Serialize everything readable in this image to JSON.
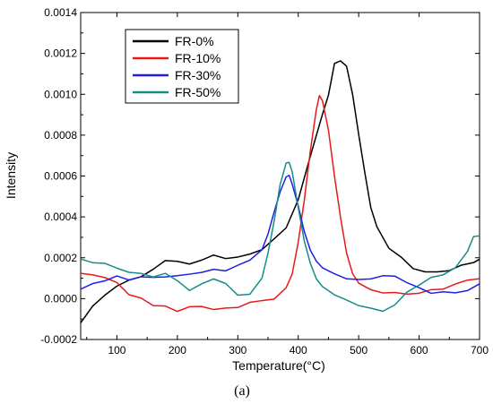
{
  "chart_data": {
    "type": "line",
    "xlabel": "Temperature(°C)",
    "ylabel": "Intensity",
    "caption": "(a)",
    "xlim": [
      40,
      700
    ],
    "ylim": [
      -0.0002,
      0.0014
    ],
    "x_ticks": [
      100,
      200,
      300,
      400,
      500,
      600,
      700
    ],
    "x_tick_labels": [
      "100",
      "200",
      "300",
      "400",
      "500",
      "600",
      "700"
    ],
    "y_ticks": [
      -0.0002,
      0.0,
      0.0002,
      0.0004,
      0.0006,
      0.0008,
      0.001,
      0.0012,
      0.0014
    ],
    "y_tick_labels": [
      "-0.0002",
      "0.0000",
      "0.0002",
      "0.0004",
      "0.0006",
      "0.0008",
      "0.0010",
      "0.0012",
      "0.0014"
    ],
    "grid": false,
    "legend_position": "top-left",
    "series": [
      {
        "name": "FR-0%",
        "color": "#000000",
        "points": [
          [
            40,
            -0.000115
          ],
          [
            60,
            -4e-05
          ],
          [
            80,
            2e-05
          ],
          [
            100,
            6e-05
          ],
          [
            120,
            9e-05
          ],
          [
            140,
            0.00011
          ],
          [
            160,
            0.00014
          ],
          [
            180,
            0.00019
          ],
          [
            200,
            0.00018
          ],
          [
            220,
            0.00017
          ],
          [
            240,
            0.00019
          ],
          [
            260,
            0.00021
          ],
          [
            280,
            0.0002
          ],
          [
            300,
            0.0002
          ],
          [
            320,
            0.00022
          ],
          [
            340,
            0.00024
          ],
          [
            360,
            0.00029
          ],
          [
            380,
            0.00035
          ],
          [
            400,
            0.00048
          ],
          [
            420,
            0.0007
          ],
          [
            440,
            0.0009
          ],
          [
            450,
            0.001
          ],
          [
            460,
            0.00115
          ],
          [
            470,
            0.00116
          ],
          [
            480,
            0.00114
          ],
          [
            490,
            0.001
          ],
          [
            500,
            0.0008
          ],
          [
            510,
            0.00062
          ],
          [
            520,
            0.00045
          ],
          [
            530,
            0.00035
          ],
          [
            550,
            0.00025
          ],
          [
            570,
            0.0002
          ],
          [
            590,
            0.00015
          ],
          [
            610,
            0.00013
          ],
          [
            630,
            0.00013
          ],
          [
            650,
            0.00014
          ],
          [
            670,
            0.00016
          ],
          [
            690,
            0.00018
          ],
          [
            700,
            0.00019
          ]
        ]
      },
      {
        "name": "FR-10%",
        "color": "#e8191b",
        "points": [
          [
            40,
            0.00012
          ],
          [
            60,
            0.00012
          ],
          [
            80,
            0.0001
          ],
          [
            100,
            8e-05
          ],
          [
            120,
            2e-05
          ],
          [
            140,
            0.0
          ],
          [
            160,
            -3e-05
          ],
          [
            180,
            -4e-05
          ],
          [
            200,
            -6e-05
          ],
          [
            220,
            -4e-05
          ],
          [
            240,
            -4e-05
          ],
          [
            260,
            -5e-05
          ],
          [
            280,
            -5e-05
          ],
          [
            300,
            -4e-05
          ],
          [
            320,
            -2e-05
          ],
          [
            340,
            -1e-05
          ],
          [
            360,
            0.0
          ],
          [
            380,
            5e-05
          ],
          [
            390,
            0.00012
          ],
          [
            400,
            0.00028
          ],
          [
            410,
            0.00048
          ],
          [
            420,
            0.00072
          ],
          [
            430,
            0.00093
          ],
          [
            435,
            0.00099
          ],
          [
            440,
            0.00097
          ],
          [
            450,
            0.00082
          ],
          [
            460,
            0.0006
          ],
          [
            470,
            0.0004
          ],
          [
            480,
            0.00022
          ],
          [
            490,
            0.00012
          ],
          [
            500,
            8e-05
          ],
          [
            520,
            4e-05
          ],
          [
            540,
            3e-05
          ],
          [
            560,
            3e-05
          ],
          [
            580,
            2e-05
          ],
          [
            600,
            3e-05
          ],
          [
            620,
            4e-05
          ],
          [
            640,
            5e-05
          ],
          [
            660,
            7e-05
          ],
          [
            680,
            9e-05
          ],
          [
            700,
            0.0001
          ]
        ]
      },
      {
        "name": "FR-30%",
        "color": "#1e1ee6",
        "points": [
          [
            40,
            5e-05
          ],
          [
            60,
            7e-05
          ],
          [
            80,
            9e-05
          ],
          [
            100,
            0.00011
          ],
          [
            120,
            9e-05
          ],
          [
            140,
            0.00011
          ],
          [
            160,
            0.0001
          ],
          [
            180,
            0.00011
          ],
          [
            200,
            0.00011
          ],
          [
            220,
            0.00012
          ],
          [
            240,
            0.00013
          ],
          [
            260,
            0.00014
          ],
          [
            280,
            0.00014
          ],
          [
            300,
            0.00016
          ],
          [
            320,
            0.00019
          ],
          [
            340,
            0.00024
          ],
          [
            350,
            0.00032
          ],
          [
            360,
            0.00042
          ],
          [
            370,
            0.00052
          ],
          [
            380,
            0.0006
          ],
          [
            385,
            0.0006
          ],
          [
            390,
            0.00056
          ],
          [
            400,
            0.00045
          ],
          [
            410,
            0.00033
          ],
          [
            420,
            0.00024
          ],
          [
            430,
            0.00018
          ],
          [
            440,
            0.00015
          ],
          [
            460,
            0.00012
          ],
          [
            480,
            0.0001
          ],
          [
            500,
            9e-05
          ],
          [
            520,
            0.0001
          ],
          [
            540,
            0.00011
          ],
          [
            560,
            0.00011
          ],
          [
            580,
            8e-05
          ],
          [
            600,
            5e-05
          ],
          [
            620,
            3e-05
          ],
          [
            640,
            3e-05
          ],
          [
            660,
            3e-05
          ],
          [
            680,
            4e-05
          ],
          [
            700,
            7e-05
          ]
        ]
      },
      {
        "name": "FR-50%",
        "color": "#148c8a",
        "points": [
          [
            40,
            0.00019
          ],
          [
            60,
            0.00018
          ],
          [
            80,
            0.00017
          ],
          [
            100,
            0.00015
          ],
          [
            120,
            0.00013
          ],
          [
            140,
            0.00012
          ],
          [
            160,
            0.00011
          ],
          [
            180,
            0.00012
          ],
          [
            200,
            9e-05
          ],
          [
            220,
            4e-05
          ],
          [
            240,
            7e-05
          ],
          [
            260,
            0.0001
          ],
          [
            280,
            7e-05
          ],
          [
            300,
            2e-05
          ],
          [
            320,
            2e-05
          ],
          [
            340,
            0.0001
          ],
          [
            350,
            0.00022
          ],
          [
            360,
            0.00038
          ],
          [
            370,
            0.00056
          ],
          [
            380,
            0.00066
          ],
          [
            385,
            0.00067
          ],
          [
            390,
            0.00062
          ],
          [
            400,
            0.00045
          ],
          [
            410,
            0.00028
          ],
          [
            420,
            0.00017
          ],
          [
            430,
            0.0001
          ],
          [
            440,
            6e-05
          ],
          [
            460,
            2e-05
          ],
          [
            480,
            -1e-05
          ],
          [
            500,
            -3e-05
          ],
          [
            520,
            -5e-05
          ],
          [
            540,
            -6e-05
          ],
          [
            560,
            -3e-05
          ],
          [
            580,
            3e-05
          ],
          [
            600,
            7e-05
          ],
          [
            620,
            0.0001
          ],
          [
            640,
            0.00012
          ],
          [
            660,
            0.00015
          ],
          [
            680,
            0.00023
          ],
          [
            690,
            0.0003
          ],
          [
            700,
            0.00031
          ]
        ]
      }
    ]
  }
}
